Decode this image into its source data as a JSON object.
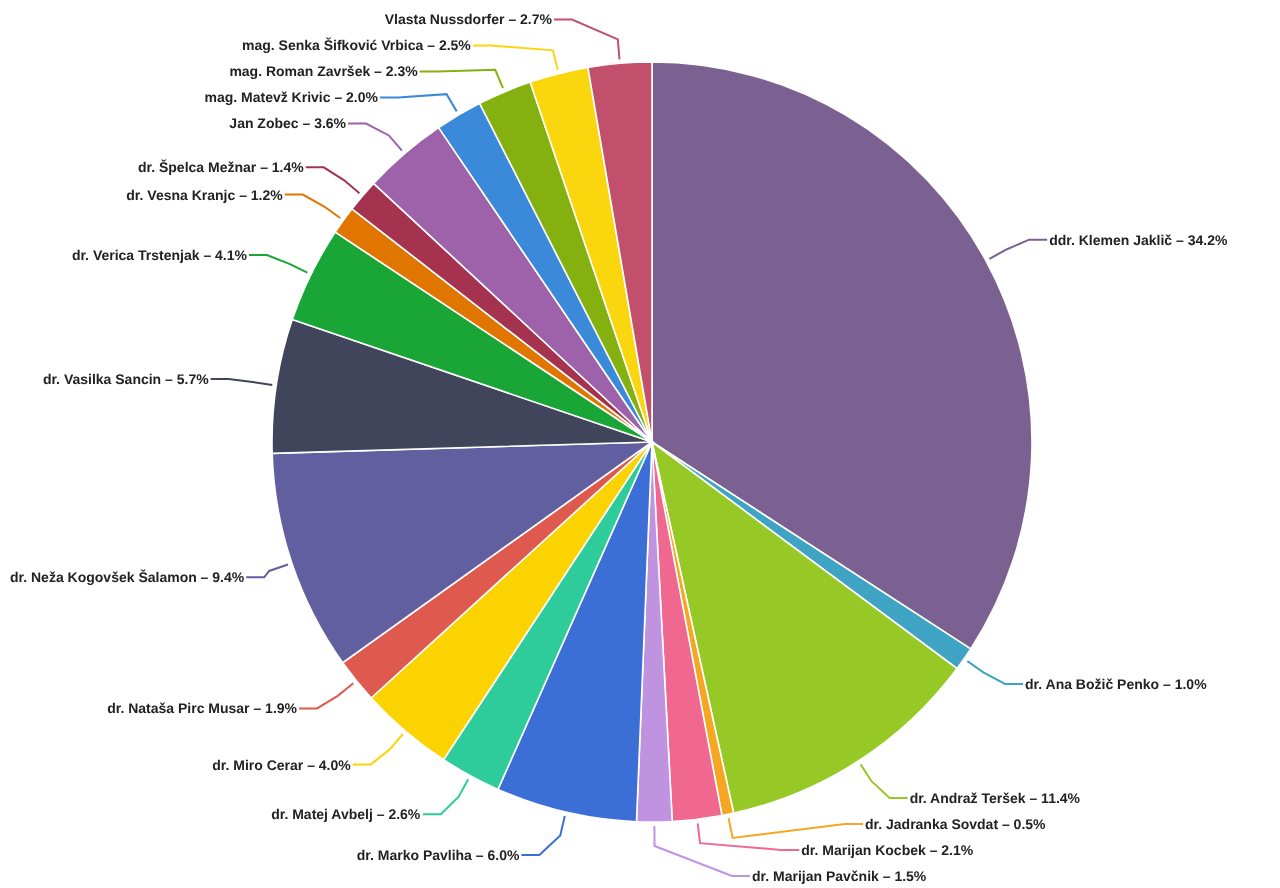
{
  "chart_data": {
    "type": "pie",
    "categories": [
      "ddr. Klemen Jaklič",
      "dr. Ana Božič Penko",
      "dr. Andraž Teršek",
      "dr. Jadranka Sovdat",
      "dr. Marijan Kocbek",
      "dr. Marijan Pavčnik",
      "dr. Marko Pavliha",
      "dr. Matej Avbelj",
      "dr. Miro Cerar",
      "dr. Nataša Pirc Musar",
      "dr. Neža Kogovšek Šalamon",
      "dr. Vasilka Sancin",
      "dr. Verica Trstenjak",
      "dr. Vesna Kranjc",
      "dr. Špelca Mežnar",
      "Jan Zobec",
      "mag. Matevž Krivic",
      "mag. Roman Završek",
      "mag. Senka Šifković Vrbica",
      "Vlasta Nussdorfer"
    ],
    "values": [
      34.2,
      1.0,
      11.4,
      0.5,
      2.1,
      1.5,
      6.0,
      2.6,
      4.0,
      1.9,
      9.4,
      5.7,
      4.1,
      1.2,
      1.4,
      3.6,
      2.0,
      2.3,
      2.5,
      2.7
    ],
    "colors": [
      "#7b6192",
      "#3fa3c4",
      "#97c926",
      "#f5a623",
      "#f06890",
      "#bf93e0",
      "#3b6fd6",
      "#2ecc9b",
      "#fbd300",
      "#df5a4e",
      "#625fa1",
      "#41455b",
      "#1aa636",
      "#e07500",
      "#a5334f",
      "#9d62aa",
      "#3b8ad9",
      "#84b010",
      "#fad60f",
      "#c24f6b"
    ],
    "value_labels": [
      "34.2%",
      "1.0%",
      "11.4%",
      "0.5%",
      "2.1%",
      "1.5%",
      "6.0%",
      "2.6%",
      "4.0%",
      "1.9%",
      "9.4%",
      "5.7%",
      "4.1%",
      "1.2%",
      "1.4%",
      "3.6%",
      "2.0%",
      "2.3%",
      "2.5%",
      "2.7%"
    ]
  }
}
